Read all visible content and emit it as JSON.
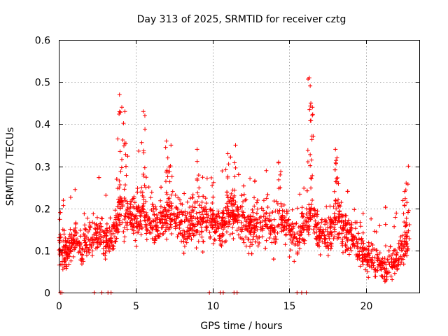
{
  "chart_data": {
    "type": "scatter",
    "title": "Day 313 of 2025, SRMTID for receiver cztg",
    "xlabel": "GPS time / hours",
    "ylabel": "SRMTID / TECUs",
    "xlim": [
      0,
      23.5
    ],
    "ylim": [
      0,
      0.6
    ],
    "xticks": [
      0,
      5,
      10,
      15,
      20
    ],
    "xtick_labels": [
      "0",
      "5",
      "10",
      "15",
      "20"
    ],
    "yticks": [
      0,
      0.1,
      0.2,
      0.3,
      0.4,
      0.5,
      0.6
    ],
    "ytick_labels": [
      "0",
      "0.1",
      "0.2",
      "0.3",
      "0.4",
      "0.5",
      "0.6"
    ],
    "grid": true,
    "marker": "+",
    "color": "#ff0000",
    "series": [
      {
        "name": "SRMTID",
        "envelope": [
          {
            "x": 0.0,
            "y": 0.11
          },
          {
            "x": 0.5,
            "y": 0.09
          },
          {
            "x": 1.0,
            "y": 0.13
          },
          {
            "x": 1.5,
            "y": 0.11
          },
          {
            "x": 2.0,
            "y": 0.13
          },
          {
            "x": 2.5,
            "y": 0.14
          },
          {
            "x": 3.0,
            "y": 0.12
          },
          {
            "x": 3.5,
            "y": 0.14
          },
          {
            "x": 4.0,
            "y": 0.2
          },
          {
            "x": 4.5,
            "y": 0.18
          },
          {
            "x": 5.0,
            "y": 0.17
          },
          {
            "x": 5.5,
            "y": 0.19
          },
          {
            "x": 6.0,
            "y": 0.17
          },
          {
            "x": 6.5,
            "y": 0.16
          },
          {
            "x": 7.0,
            "y": 0.19
          },
          {
            "x": 7.5,
            "y": 0.18
          },
          {
            "x": 8.0,
            "y": 0.16
          },
          {
            "x": 8.5,
            "y": 0.17
          },
          {
            "x": 9.0,
            "y": 0.16
          },
          {
            "x": 9.5,
            "y": 0.18
          },
          {
            "x": 10.0,
            "y": 0.17
          },
          {
            "x": 10.5,
            "y": 0.15
          },
          {
            "x": 11.0,
            "y": 0.18
          },
          {
            "x": 11.5,
            "y": 0.19
          },
          {
            "x": 12.0,
            "y": 0.17
          },
          {
            "x": 12.5,
            "y": 0.15
          },
          {
            "x": 13.0,
            "y": 0.16
          },
          {
            "x": 13.5,
            "y": 0.17
          },
          {
            "x": 14.0,
            "y": 0.15
          },
          {
            "x": 14.5,
            "y": 0.18
          },
          {
            "x": 15.0,
            "y": 0.15
          },
          {
            "x": 15.5,
            "y": 0.13
          },
          {
            "x": 16.0,
            "y": 0.15
          },
          {
            "x": 16.5,
            "y": 0.19
          },
          {
            "x": 17.0,
            "y": 0.14
          },
          {
            "x": 17.5,
            "y": 0.13
          },
          {
            "x": 18.0,
            "y": 0.18
          },
          {
            "x": 18.5,
            "y": 0.15
          },
          {
            "x": 19.0,
            "y": 0.13
          },
          {
            "x": 19.5,
            "y": 0.11
          },
          {
            "x": 20.0,
            "y": 0.09
          },
          {
            "x": 20.5,
            "y": 0.07
          },
          {
            "x": 21.0,
            "y": 0.06
          },
          {
            "x": 21.5,
            "y": 0.06
          },
          {
            "x": 22.0,
            "y": 0.08
          },
          {
            "x": 22.5,
            "y": 0.11
          },
          {
            "x": 22.8,
            "y": 0.13
          }
        ],
        "spread": 0.05,
        "peaks": [
          {
            "x": 3.95,
            "y": 0.47
          },
          {
            "x": 4.1,
            "y": 0.44
          },
          {
            "x": 4.3,
            "y": 0.43
          },
          {
            "x": 5.5,
            "y": 0.43
          },
          {
            "x": 5.6,
            "y": 0.42
          },
          {
            "x": 7.0,
            "y": 0.36
          },
          {
            "x": 7.3,
            "y": 0.35
          },
          {
            "x": 9.0,
            "y": 0.34
          },
          {
            "x": 11.5,
            "y": 0.35
          },
          {
            "x": 11.0,
            "y": 0.33
          },
          {
            "x": 14.3,
            "y": 0.31
          },
          {
            "x": 16.3,
            "y": 0.51
          },
          {
            "x": 16.4,
            "y": 0.45
          },
          {
            "x": 16.5,
            "y": 0.44
          },
          {
            "x": 18.0,
            "y": 0.34
          },
          {
            "x": 18.1,
            "y": 0.32
          },
          {
            "x": 22.6,
            "y": 0.26
          },
          {
            "x": 22.5,
            "y": 0.24
          }
        ],
        "zeros": [
          0.1,
          0.2,
          2.3,
          2.8,
          3.2,
          3.4,
          9.8,
          10.5,
          10.7,
          11.4,
          11.6,
          15.5,
          15.8,
          16.1
        ]
      }
    ]
  }
}
